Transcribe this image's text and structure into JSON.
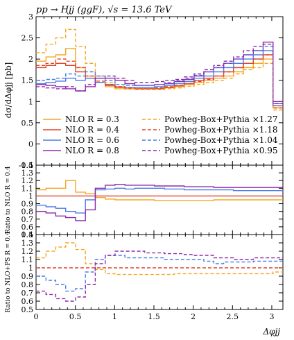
{
  "title": "pp → Hjj (ggF), √s = 13.6 TeV",
  "colors": {
    "R03": "#f5a623",
    "R04": "#e0442a",
    "R06": "#4a7be8",
    "R08": "#8e2aa8"
  },
  "chart_data": [
    {
      "type": "line",
      "panel": "main",
      "ylabel": "dσ/dΔφjj [pb]",
      "xlim": [
        0,
        3.14159
      ],
      "ylim": [
        -0.5,
        3
      ],
      "yticks": [
        -0.5,
        0,
        0.5,
        1,
        1.5,
        2,
        2.5,
        3
      ],
      "yticklabels": [
        "-0.5",
        "0",
        "0.5",
        "1",
        "1.5",
        "2",
        "2.5",
        "3"
      ],
      "x_edges": [
        0,
        0.126,
        0.251,
        0.377,
        0.503,
        0.628,
        0.754,
        0.88,
        1.005,
        1.131,
        1.257,
        1.382,
        1.508,
        1.634,
        1.759,
        1.885,
        2.011,
        2.136,
        2.262,
        2.388,
        2.513,
        2.639,
        2.765,
        2.89,
        3.016,
        3.14159
      ],
      "legend": [
        {
          "name": "NLO R = 0.3",
          "key": "R03",
          "dash": false
        },
        {
          "name": "NLO R = 0.4",
          "key": "R04",
          "dash": false
        },
        {
          "name": "NLO R = 0.6",
          "key": "R06",
          "dash": false
        },
        {
          "name": "NLO R = 0.8",
          "key": "R08",
          "dash": false
        },
        {
          "name": "Powheg-Box+Pythia ×1.27",
          "key": "R03",
          "dash": true
        },
        {
          "name": "Powheg-Box+Pythia ×1.18",
          "key": "R04",
          "dash": true
        },
        {
          "name": "Powheg-Box+Pythia ×1.04",
          "key": "R06",
          "dash": true
        },
        {
          "name": "Powheg-Box+Pythia ×0.95",
          "key": "R08",
          "dash": true
        }
      ],
      "series": [
        {
          "key": "R03",
          "dash": false,
          "values": [
            1.95,
            2.05,
            2.1,
            2.25,
            1.8,
            1.6,
            1.45,
            1.35,
            1.3,
            1.3,
            1.3,
            1.3,
            1.3,
            1.32,
            1.35,
            1.4,
            1.45,
            1.5,
            1.55,
            1.6,
            1.7,
            1.8,
            1.9,
            2.0,
            0.85
          ]
        },
        {
          "key": "R04",
          "dash": false,
          "values": [
            1.8,
            1.85,
            1.9,
            1.85,
            1.7,
            1.55,
            1.45,
            1.38,
            1.33,
            1.3,
            1.3,
            1.3,
            1.3,
            1.33,
            1.37,
            1.42,
            1.5,
            1.55,
            1.6,
            1.7,
            1.8,
            1.9,
            2.0,
            2.1,
            0.9
          ]
        },
        {
          "key": "R06",
          "dash": false,
          "values": [
            1.42,
            1.45,
            1.48,
            1.55,
            1.5,
            1.55,
            1.45,
            1.4,
            1.35,
            1.33,
            1.33,
            1.33,
            1.35,
            1.38,
            1.42,
            1.47,
            1.55,
            1.6,
            1.7,
            1.8,
            1.9,
            2.0,
            2.1,
            2.2,
            0.95
          ]
        },
        {
          "key": "R08",
          "dash": false,
          "values": [
            1.4,
            1.38,
            1.35,
            1.3,
            1.25,
            1.35,
            1.55,
            1.55,
            1.5,
            1.42,
            1.38,
            1.38,
            1.4,
            1.42,
            1.47,
            1.52,
            1.6,
            1.7,
            1.8,
            1.9,
            2.0,
            2.1,
            2.2,
            2.4,
            1.0
          ]
        },
        {
          "key": "R03",
          "dash": true,
          "values": [
            2.15,
            2.35,
            2.5,
            2.7,
            2.3,
            1.9,
            1.6,
            1.45,
            1.35,
            1.3,
            1.28,
            1.28,
            1.28,
            1.3,
            1.32,
            1.36,
            1.4,
            1.45,
            1.5,
            1.55,
            1.65,
            1.75,
            1.8,
            1.9,
            0.8
          ]
        },
        {
          "key": "R04",
          "dash": true,
          "values": [
            1.85,
            1.9,
            2.0,
            1.95,
            1.8,
            1.6,
            1.48,
            1.4,
            1.35,
            1.32,
            1.3,
            1.3,
            1.32,
            1.35,
            1.38,
            1.42,
            1.47,
            1.52,
            1.6,
            1.7,
            1.8,
            1.9,
            2.0,
            2.1,
            0.85
          ]
        },
        {
          "key": "R06",
          "dash": true,
          "values": [
            1.5,
            1.52,
            1.55,
            1.65,
            1.6,
            1.7,
            1.6,
            1.5,
            1.4,
            1.38,
            1.38,
            1.38,
            1.4,
            1.45,
            1.5,
            1.55,
            1.62,
            1.7,
            1.8,
            1.9,
            2.0,
            2.1,
            2.2,
            2.3,
            0.9
          ]
        },
        {
          "key": "R08",
          "dash": true,
          "values": [
            1.35,
            1.32,
            1.3,
            1.35,
            1.25,
            1.4,
            1.55,
            1.6,
            1.55,
            1.5,
            1.45,
            1.45,
            1.47,
            1.5,
            1.52,
            1.58,
            1.65,
            1.75,
            1.85,
            1.95,
            2.05,
            2.2,
            2.3,
            2.35,
            0.95
          ]
        }
      ]
    },
    {
      "type": "line",
      "panel": "ratio-nlo",
      "ylabel": "Ratio to NLO R = 0.4",
      "xlim": [
        0,
        3.14159
      ],
      "ylim": [
        0.5,
        1.4
      ],
      "yticks": [
        0.5,
        0.6,
        0.7,
        0.8,
        0.9,
        1,
        1.1,
        1.2,
        1.3,
        1.4
      ],
      "yticklabels": [
        "0.5",
        "0.6",
        "0.7",
        "0.8",
        "0.9",
        "1",
        "1.1",
        "1.2",
        "1.3",
        "1.4"
      ],
      "x_edges": [
        0,
        0.126,
        0.251,
        0.377,
        0.503,
        0.628,
        0.754,
        0.88,
        1.005,
        1.131,
        1.257,
        1.382,
        1.508,
        1.634,
        1.759,
        1.885,
        2.011,
        2.136,
        2.262,
        2.388,
        2.513,
        2.639,
        2.765,
        2.89,
        3.016,
        3.14159
      ],
      "series": [
        {
          "key": "R03",
          "dash": false,
          "values": [
            1.08,
            1.1,
            1.1,
            1.2,
            1.05,
            1.03,
            0.98,
            0.96,
            0.95,
            0.95,
            0.95,
            0.95,
            0.94,
            0.94,
            0.94,
            0.94,
            0.94,
            0.94,
            0.95,
            0.95,
            0.95,
            0.95,
            0.95,
            0.95,
            0.95
          ]
        },
        {
          "key": "R04",
          "dash": false,
          "values": [
            1.0,
            1.0,
            1.0,
            1.0,
            1.0,
            1.0,
            1.0,
            1.0,
            1.0,
            1.0,
            1.0,
            1.0,
            1.0,
            1.0,
            1.0,
            1.0,
            1.0,
            1.0,
            1.0,
            1.0,
            1.0,
            1.0,
            1.0,
            1.0,
            1.0
          ]
        },
        {
          "key": "R06",
          "dash": false,
          "values": [
            0.88,
            0.86,
            0.84,
            0.8,
            0.78,
            0.95,
            1.08,
            1.09,
            1.1,
            1.09,
            1.1,
            1.1,
            1.1,
            1.09,
            1.09,
            1.08,
            1.08,
            1.08,
            1.08,
            1.08,
            1.07,
            1.07,
            1.07,
            1.07,
            1.07
          ]
        },
        {
          "key": "R08",
          "dash": false,
          "values": [
            0.8,
            0.78,
            0.74,
            0.72,
            0.68,
            0.82,
            1.1,
            1.14,
            1.15,
            1.14,
            1.14,
            1.14,
            1.13,
            1.13,
            1.13,
            1.12,
            1.12,
            1.12,
            1.11,
            1.11,
            1.11,
            1.11,
            1.11,
            1.11,
            1.11
          ]
        }
      ]
    },
    {
      "type": "line",
      "panel": "ratio-nlops",
      "ylabel": "Ratio to NLO+PS R = 0.4",
      "xlabel": "Δφjj",
      "xlim": [
        0,
        3.14159
      ],
      "ylim": [
        0.5,
        1.4
      ],
      "xticks": [
        0,
        0.5,
        1,
        1.5,
        2,
        2.5,
        3
      ],
      "xticklabels": [
        "0",
        "0.5",
        "1",
        "1.5",
        "2",
        "2.5",
        "3"
      ],
      "yticks": [
        0.5,
        0.6,
        0.7,
        0.8,
        0.9,
        1,
        1.1,
        1.2,
        1.3,
        1.4
      ],
      "yticklabels": [
        "0.5",
        "0.6",
        "0.7",
        "0.8",
        "0.9",
        "1",
        "1.1",
        "1.2",
        "1.3",
        "1.4"
      ],
      "x_edges": [
        0,
        0.126,
        0.251,
        0.377,
        0.503,
        0.628,
        0.754,
        0.88,
        1.005,
        1.131,
        1.257,
        1.382,
        1.508,
        1.634,
        1.759,
        1.885,
        2.011,
        2.136,
        2.262,
        2.388,
        2.513,
        2.639,
        2.765,
        2.89,
        3.016,
        3.14159
      ],
      "series": [
        {
          "key": "R03",
          "dash": true,
          "values": [
            1.12,
            1.2,
            1.25,
            1.3,
            1.22,
            1.05,
            0.98,
            0.93,
            0.92,
            0.92,
            0.92,
            0.92,
            0.92,
            0.92,
            0.93,
            0.93,
            0.93,
            0.93,
            0.93,
            0.93,
            0.93,
            0.93,
            0.93,
            0.93,
            0.95
          ]
        },
        {
          "key": "R04",
          "dash": true,
          "values": [
            1.0,
            1.0,
            1.0,
            1.0,
            1.0,
            1.0,
            1.0,
            1.0,
            1.0,
            1.0,
            1.0,
            1.0,
            1.0,
            1.0,
            1.0,
            1.0,
            1.0,
            1.0,
            1.0,
            1.0,
            1.0,
            1.0,
            1.0,
            1.0,
            1.0
          ]
        },
        {
          "key": "R06",
          "dash": true,
          "values": [
            0.9,
            0.85,
            0.8,
            0.72,
            0.75,
            0.95,
            1.1,
            1.15,
            1.15,
            1.12,
            1.12,
            1.12,
            1.12,
            1.1,
            1.1,
            1.1,
            1.1,
            1.08,
            1.05,
            1.07,
            1.07,
            1.07,
            1.08,
            1.08,
            1.08
          ]
        },
        {
          "key": "R08",
          "dash": true,
          "values": [
            0.72,
            0.68,
            0.63,
            0.6,
            0.65,
            0.8,
            1.05,
            1.15,
            1.2,
            1.2,
            1.2,
            1.18,
            1.18,
            1.17,
            1.17,
            1.16,
            1.15,
            1.15,
            1.12,
            1.12,
            1.1,
            1.1,
            1.12,
            1.12,
            1.12
          ]
        }
      ]
    }
  ]
}
